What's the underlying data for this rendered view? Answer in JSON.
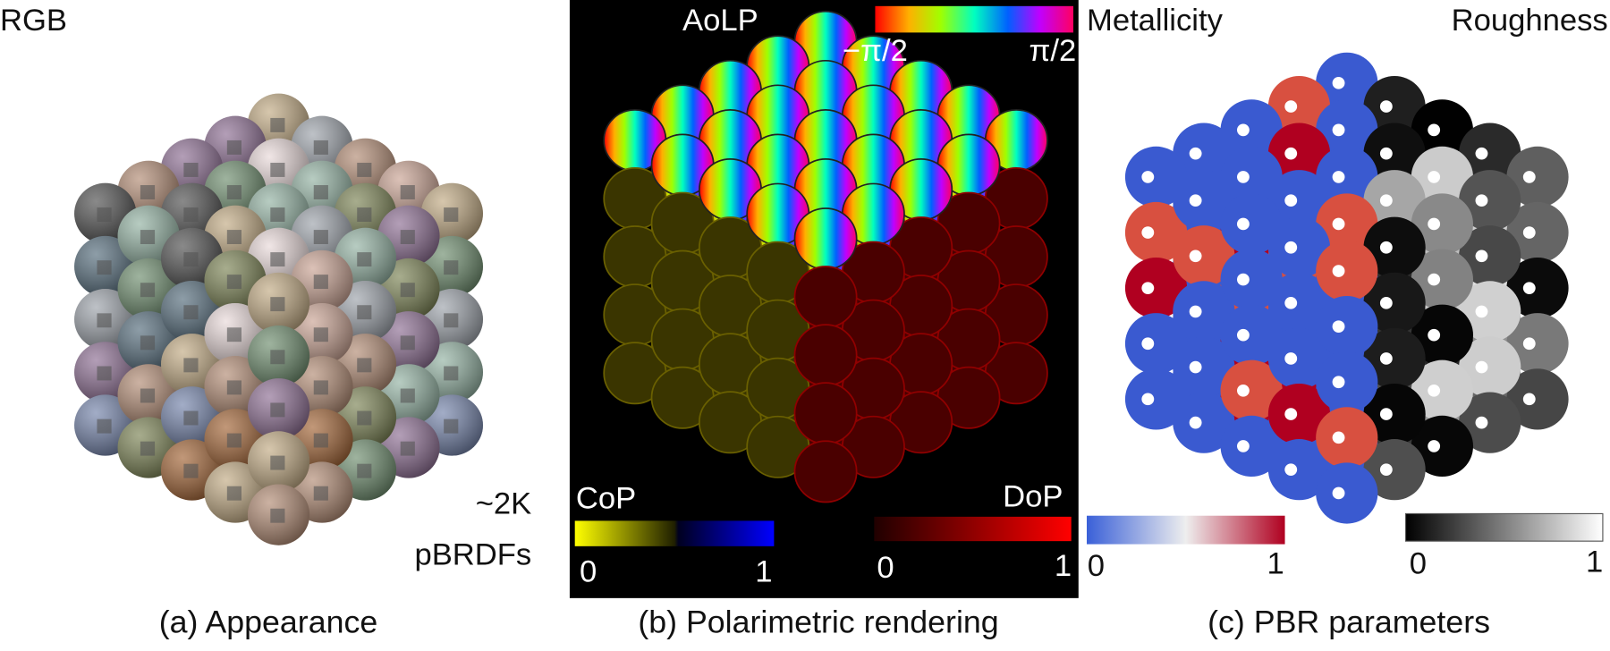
{
  "panel_a": {
    "label": "RGB",
    "count": "~2K",
    "unit": "pBRDFs",
    "caption": "(a) Appearance"
  },
  "panel_b": {
    "aolp": {
      "label": "AoLP",
      "min": "−π/2",
      "max": "π/2"
    },
    "cop": {
      "label": "CoP",
      "min": "0",
      "max": "1"
    },
    "dop": {
      "label": "DoP",
      "min": "0",
      "max": "1"
    },
    "caption": "(b) Polarimetric rendering"
  },
  "panel_c": {
    "metallicity": {
      "label": "Metallicity",
      "min": "0",
      "max": "1"
    },
    "roughness": {
      "label": "Roughness",
      "min": "0",
      "max": "1"
    },
    "caption": "(c) PBR parameters"
  }
}
